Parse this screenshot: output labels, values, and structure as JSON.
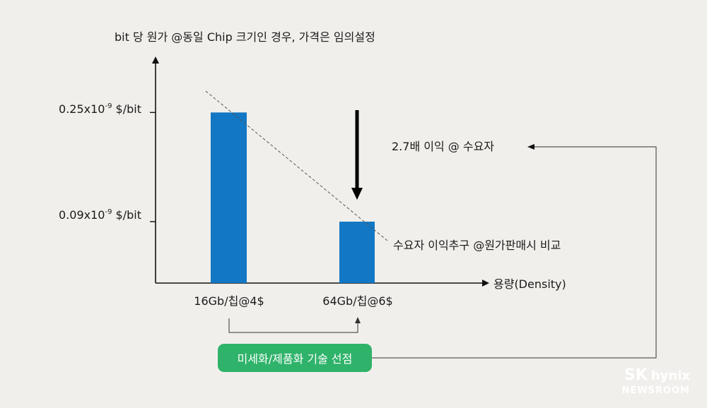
{
  "chart_data": {
    "type": "bar",
    "title": "bit 당 원가 @동일 Chip 크기인 경우, 가격은 임의설정",
    "xlabel": "용량(Density)",
    "categories": [
      "16Gb/칩@4$",
      "64Gb/칩@6$"
    ],
    "values": [
      0.25,
      0.09
    ],
    "ytick_labels": [
      {
        "value": 0.25,
        "prefix": "0.25x10",
        "exp": "-9",
        "suffix": " $/bit"
      },
      {
        "value": 0.09,
        "prefix": "0.09x10",
        "exp": "-9",
        "suffix": " $/bit"
      }
    ],
    "ylim": [
      0,
      0.33
    ],
    "bar_color": "#1277c4",
    "annotations": {
      "profit": "2.7배 이익 @ 수요자",
      "pursuit": "수요자 이익추구 @원가판매시 비교",
      "badge": "미세화/제품화 기술 선점"
    },
    "badge_color": "#2fb36a"
  },
  "brand": {
    "sk": "SK",
    "hynix": "hynix",
    "newsroom": "NEWSROOM"
  }
}
